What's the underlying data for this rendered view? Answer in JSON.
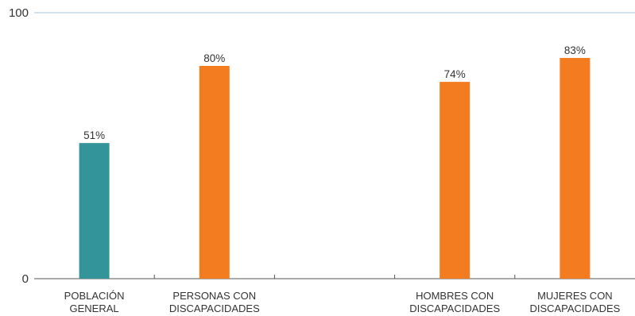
{
  "chart_data": {
    "type": "bar",
    "categories": [
      [
        "POBLACIÓN",
        "GENERAL"
      ],
      [
        "PERSONAS CON",
        "DISCAPACIDADES"
      ],
      [
        "",
        ""
      ],
      [
        "HOMBRES CON",
        "DISCAPACIDADES"
      ],
      [
        "MUJERES CON",
        "DISCAPACIDADES"
      ]
    ],
    "values": [
      51,
      80,
      null,
      74,
      83
    ],
    "data_labels": [
      "51%",
      "80%",
      "",
      "74%",
      "83%"
    ],
    "bar_colors": [
      "#33959a",
      "#f37c21",
      "",
      "#f37c21",
      "#f37c21"
    ],
    "ylim": [
      0,
      100
    ],
    "y_ticks": [
      "0",
      "100"
    ],
    "title": "",
    "xlabel": "",
    "ylabel": "",
    "grid": false,
    "colors": {
      "baseline": "#555555",
      "top_line": "#a9c4dd",
      "text": "#333333"
    }
  }
}
